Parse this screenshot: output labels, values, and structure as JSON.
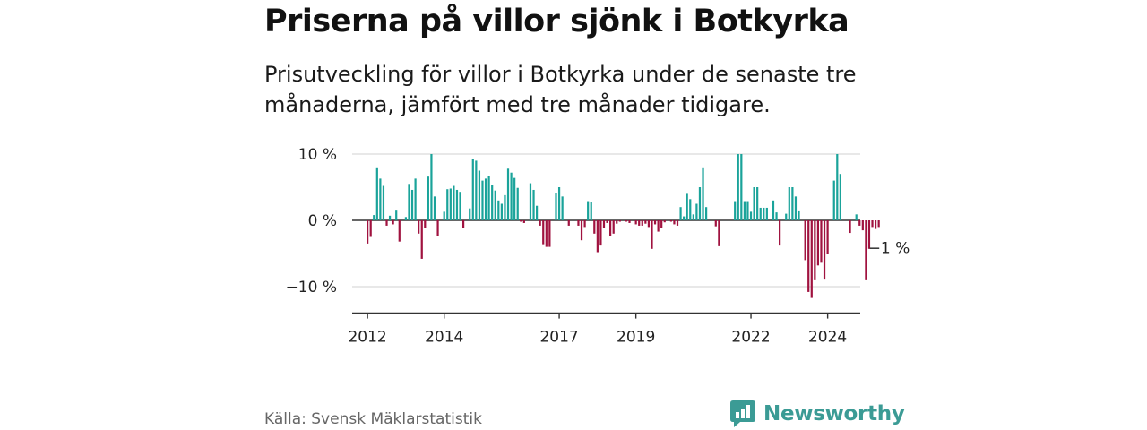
{
  "header": {
    "title": "Priserna på villor sjönk i Botkyrka",
    "subtitle": "Prisutveckling för villor i Botkyrka under de senaste tre månaderna, jämfört med tre månader tidigare."
  },
  "footer": {
    "source": "Källa: Svensk Mäklarstatistik",
    "brand": "Newsworthy"
  },
  "colors": {
    "positive": "#1aa39a",
    "negative": "#a0123f",
    "brand": "#3b9b95"
  },
  "chart_data": {
    "type": "bar",
    "title": "Priserna på villor sjönk i Botkyrka",
    "xlabel": "",
    "ylabel": "",
    "ylim": [
      -14,
      10
    ],
    "xlim": [
      2011.6,
      2024.85
    ],
    "grid": true,
    "y_ticks": [
      10,
      0,
      -10
    ],
    "y_tick_labels": [
      "10 %",
      "0 %",
      "−10 %"
    ],
    "x_ticks": [
      2012,
      2014,
      2017,
      2019,
      2022,
      2024
    ],
    "x_tick_labels": [
      "2012",
      "2014",
      "2017",
      "2019",
      "2022",
      "2024"
    ],
    "annotation": {
      "text": "−1 %",
      "value": -1
    },
    "series_start": 2012.0,
    "step": 0.08333,
    "values": [
      -3.5,
      -2.5,
      0.8,
      8.0,
      6.3,
      5.2,
      -0.8,
      0.7,
      -0.6,
      1.6,
      -3.2,
      0,
      0.5,
      5.5,
      4.6,
      6.3,
      -2.0,
      -5.8,
      -1.2,
      6.6,
      10.0,
      3.6,
      -2.3,
      0,
      1.3,
      4.7,
      4.8,
      5.2,
      4.6,
      4.3,
      -1.2,
      0,
      1.8,
      9.3,
      9.0,
      7.5,
      6.0,
      6.3,
      6.7,
      5.4,
      4.5,
      3.0,
      2.5,
      3.8,
      7.8,
      7.2,
      6.4,
      4.9,
      -0.2,
      -0.4,
      0,
      5.6,
      4.6,
      2.2,
      -0.8,
      -3.6,
      -4.0,
      -4.0,
      0,
      4.1,
      5.0,
      3.6,
      0,
      -0.8,
      0,
      0,
      -0.8,
      -3.0,
      -1.0,
      2.9,
      2.8,
      -2.0,
      -4.8,
      -3.8,
      -1.2,
      -0.4,
      -2.4,
      -2.0,
      -0.5,
      -0.2,
      0,
      -0.2,
      -0.4,
      0,
      -0.6,
      -0.8,
      -0.8,
      -0.5,
      -1.0,
      -4.3,
      -0.6,
      -1.7,
      -1.2,
      -0.3,
      0,
      -0.2,
      -0.6,
      -0.8,
      2.0,
      0.6,
      4.0,
      3.2,
      0.9,
      2.5,
      5.0,
      8.0,
      2.0,
      0,
      0,
      -0.9,
      -3.9,
      0,
      0,
      0,
      0,
      2.9,
      10.0,
      10.0,
      2.9,
      2.9,
      1.3,
      5.0,
      5.0,
      1.9,
      1.9,
      1.9,
      0,
      3.0,
      1.2,
      -3.8,
      0,
      1.0,
      5.0,
      5.0,
      3.6,
      1.5,
      0,
      -6.0,
      -10.8,
      -11.7,
      -8.9,
      -6.8,
      -6.4,
      -8.8,
      -5.0,
      0,
      6.0,
      10.0,
      7.0,
      0,
      0,
      -1.9,
      0,
      0.9,
      -0.8,
      -1.5,
      -8.9,
      -4.3,
      -1.0,
      -1.3,
      -1.0
    ]
  }
}
